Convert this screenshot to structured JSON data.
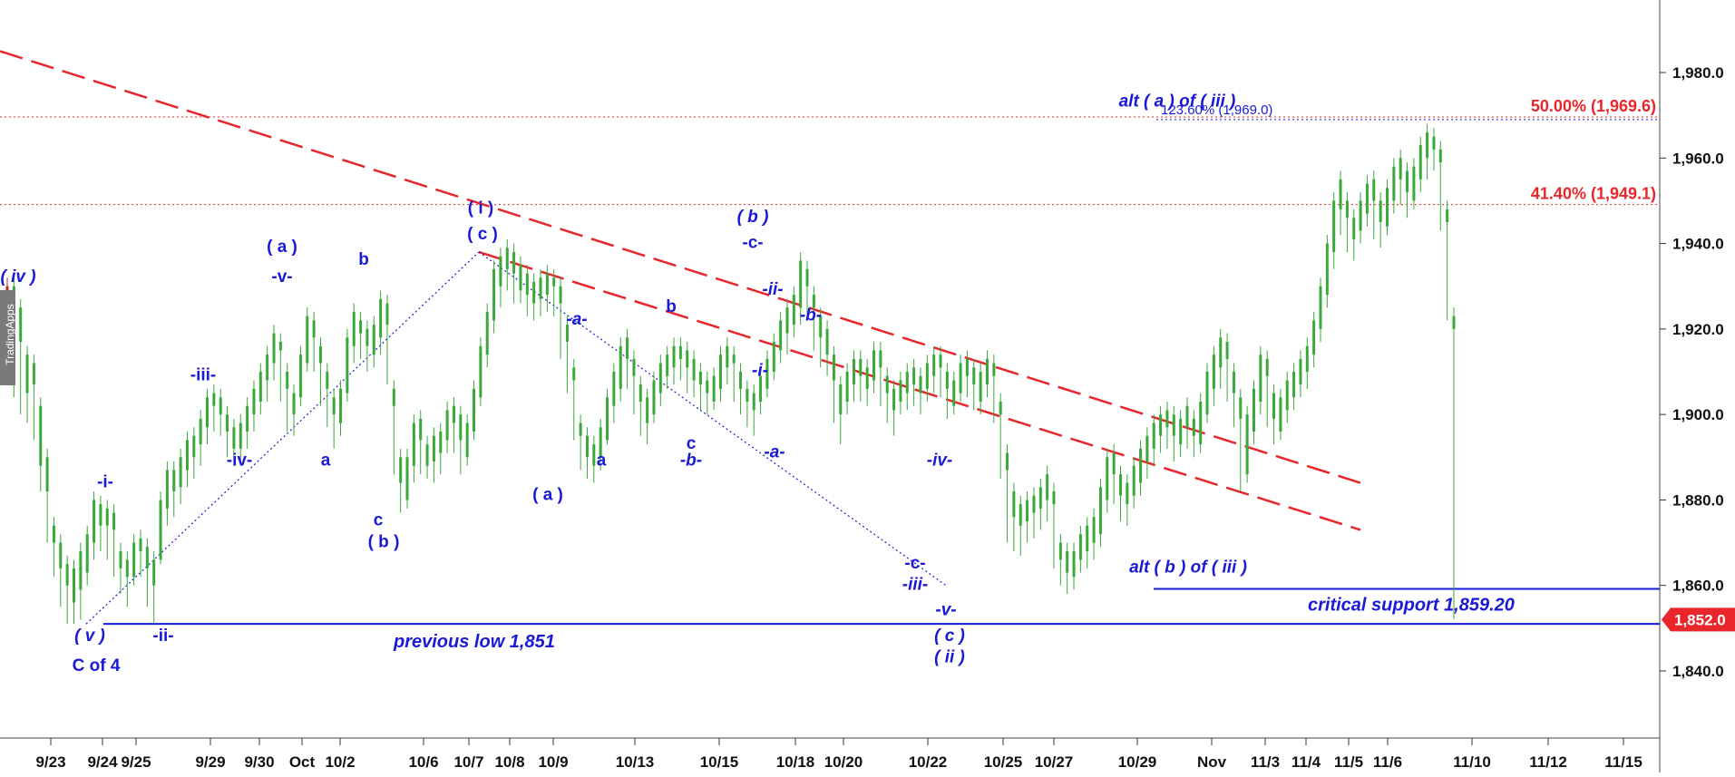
{
  "watermark": "TradingApps",
  "chart_data": {
    "type": "candlestick",
    "y_axis": {
      "ticks": [
        "1,980.0",
        "1,960.0",
        "1,940.0",
        "1,920.0",
        "1,900.0",
        "1,880.0",
        "1,860.0",
        "1,840.0"
      ],
      "ylim": [
        1820,
        1996
      ],
      "side": "right"
    },
    "x_axis": {
      "ticks": [
        "9/23",
        "9/24",
        "9/25",
        "9/29",
        "9/30",
        "Oct",
        "10/2",
        "10/6",
        "10/7",
        "10/8",
        "10/9",
        "10/13",
        "10/15",
        "10/18",
        "10/20",
        "10/22",
        "10/25",
        "10/27",
        "10/29",
        "Nov",
        "11/3",
        "11/4",
        "11/5",
        "11/6",
        "11/10",
        "11/12",
        "11/15"
      ]
    },
    "last_price": {
      "value": 1852.0,
      "label": "1,852.0",
      "color": "#e8262c"
    },
    "horizontal_levels": [
      {
        "value": 1969.6,
        "label": "50.00% (1,969.6)",
        "color": "#e8262c",
        "style": "dotted"
      },
      {
        "value": 1949.1,
        "label": "41.40% (1,949.1)",
        "color": "#e8262c",
        "style": "dotted"
      },
      {
        "value": 1969.0,
        "label": "123.60% (1,969.0)",
        "color": "#1a1ad6",
        "style": "dotted"
      },
      {
        "value": 1859.2,
        "label": "critical support 1,859.20",
        "color": "#1a1ad6",
        "style": "solid"
      },
      {
        "value": 1851,
        "label": "previous low 1,851",
        "color": "#1a1ad6",
        "style": "solid"
      }
    ],
    "trendlines": [
      {
        "color": "#e8262c",
        "style": "dashed",
        "points": [
          [
            0,
            1985
          ],
          [
            1500,
            1884
          ]
        ]
      },
      {
        "color": "#e8262c",
        "style": "dashed",
        "points": [
          [
            528,
            1938
          ],
          [
            1500,
            1873
          ]
        ]
      },
      {
        "color": "#1a1ad6",
        "style": "dotted",
        "points": [
          [
            95,
            1851
          ],
          [
            528,
            1938
          ]
        ]
      },
      {
        "color": "#1a1ad6",
        "style": "dotted",
        "points": [
          [
            528,
            1938
          ],
          [
            1043,
            1860
          ]
        ]
      }
    ],
    "annotations": [
      {
        "text": "( iv )",
        "x": 20,
        "y": 1931,
        "italic": true
      },
      {
        "text": "-i-",
        "x": 116,
        "y": 1883,
        "italic": false
      },
      {
        "text": "( v )",
        "x": 99,
        "y": 1847,
        "italic": true
      },
      {
        "text": "C of 4",
        "x": 106,
        "y": 1840,
        "italic": false
      },
      {
        "text": "-ii-",
        "x": 180,
        "y": 1847,
        "italic": false
      },
      {
        "text": "-iii-",
        "x": 224,
        "y": 1908,
        "italic": false
      },
      {
        "text": "-iv-",
        "x": 264,
        "y": 1888,
        "italic": false
      },
      {
        "text": "( a )",
        "x": 311,
        "y": 1938,
        "italic": false
      },
      {
        "text": "-v-",
        "x": 311,
        "y": 1931,
        "italic": false
      },
      {
        "text": "a",
        "x": 359,
        "y": 1888,
        "italic": false
      },
      {
        "text": "b",
        "x": 401,
        "y": 1935,
        "italic": false
      },
      {
        "text": "c",
        "x": 417,
        "y": 1874,
        "italic": false
      },
      {
        "text": "( b )",
        "x": 423,
        "y": 1869,
        "italic": false
      },
      {
        "text": "( i )",
        "x": 530,
        "y": 1947,
        "italic": false
      },
      {
        "text": "( c )",
        "x": 532,
        "y": 1941,
        "italic": false
      },
      {
        "text": "-a-",
        "x": 636,
        "y": 1921,
        "italic": true
      },
      {
        "text": "( a )",
        "x": 604,
        "y": 1880,
        "italic": false
      },
      {
        "text": "a",
        "x": 663,
        "y": 1888,
        "italic": false
      },
      {
        "text": "b",
        "x": 740,
        "y": 1924,
        "italic": false
      },
      {
        "text": "c",
        "x": 762,
        "y": 1892,
        "italic": false
      },
      {
        "text": "-b-",
        "x": 762,
        "y": 1888,
        "italic": true
      },
      {
        "text": "( b )",
        "x": 830,
        "y": 1945,
        "italic": true
      },
      {
        "text": "-c-",
        "x": 830,
        "y": 1939,
        "italic": false
      },
      {
        "text": "-ii-",
        "x": 852,
        "y": 1928,
        "italic": true
      },
      {
        "text": "-b-",
        "x": 894,
        "y": 1922,
        "italic": true
      },
      {
        "text": "-i-",
        "x": 838,
        "y": 1909,
        "italic": true
      },
      {
        "text": "-a-",
        "x": 854,
        "y": 1890,
        "italic": true
      },
      {
        "text": "-iv-",
        "x": 1036,
        "y": 1888,
        "italic": true
      },
      {
        "text": "-c-",
        "x": 1009,
        "y": 1864,
        "italic": false
      },
      {
        "text": "-iii-",
        "x": 1009,
        "y": 1859,
        "italic": true
      },
      {
        "text": "-v-",
        "x": 1043,
        "y": 1853,
        "italic": true
      },
      {
        "text": "( c )",
        "x": 1047,
        "y": 1847,
        "italic": true
      },
      {
        "text": "( ii )",
        "x": 1047,
        "y": 1842,
        "italic": true
      },
      {
        "text": "alt ( a ) of ( iii )",
        "x": 1298,
        "y": 1972,
        "italic": true
      },
      {
        "text": "alt ( b ) of ( iii )",
        "x": 1310,
        "y": 1863,
        "italic": true
      }
    ],
    "candles": [
      [
        1930,
        1925,
        1908
      ],
      [
        1915,
        1930,
        1904
      ],
      [
        1917,
        1925,
        1900
      ],
      [
        1905,
        1914,
        1898
      ],
      [
        1907,
        1912,
        1894
      ],
      [
        1888,
        1902,
        1882
      ],
      [
        1882,
        1890,
        1870
      ],
      [
        1870,
        1874,
        1862
      ],
      [
        1864,
        1870,
        1855
      ],
      [
        1860,
        1865,
        1851
      ],
      [
        1856,
        1864,
        1851
      ],
      [
        1859,
        1868,
        1852
      ],
      [
        1863,
        1872,
        1860
      ],
      [
        1870,
        1880,
        1866
      ],
      [
        1874,
        1879,
        1868
      ],
      [
        1874,
        1878,
        1866
      ],
      [
        1873,
        1877,
        1862
      ],
      [
        1864,
        1868,
        1858
      ],
      [
        1862,
        1866,
        1855
      ],
      [
        1862,
        1870,
        1860
      ],
      [
        1868,
        1871,
        1862
      ],
      [
        1864,
        1869,
        1855
      ],
      [
        1860,
        1866,
        1851
      ],
      [
        1866,
        1880,
        1865
      ],
      [
        1878,
        1887,
        1874
      ],
      [
        1882,
        1887,
        1876
      ],
      [
        1883,
        1890,
        1879
      ],
      [
        1887,
        1894,
        1883
      ],
      [
        1890,
        1895,
        1885
      ],
      [
        1893,
        1899,
        1888
      ],
      [
        1897,
        1904,
        1893
      ],
      [
        1902,
        1905,
        1896
      ],
      [
        1900,
        1904,
        1895
      ],
      [
        1896,
        1900,
        1890
      ],
      [
        1892,
        1897,
        1888
      ],
      [
        1892,
        1898,
        1888
      ],
      [
        1896,
        1902,
        1892
      ],
      [
        1900,
        1906,
        1896
      ],
      [
        1903,
        1910,
        1900
      ],
      [
        1908,
        1914,
        1903
      ],
      [
        1912,
        1919,
        1908
      ],
      [
        1915,
        1917,
        1903
      ],
      [
        1906,
        1910,
        1896
      ],
      [
        1900,
        1905,
        1895
      ],
      [
        1904,
        1914,
        1902
      ],
      [
        1912,
        1923,
        1910
      ],
      [
        1918,
        1922,
        1910
      ],
      [
        1912,
        1916,
        1902
      ],
      [
        1906,
        1910,
        1897
      ],
      [
        1900,
        1904,
        1892
      ],
      [
        1898,
        1906,
        1895
      ],
      [
        1905,
        1918,
        1903
      ],
      [
        1916,
        1924,
        1912
      ],
      [
        1919,
        1922,
        1913
      ],
      [
        1916,
        1920,
        1910
      ],
      [
        1914,
        1921,
        1911
      ],
      [
        1918,
        1927,
        1914
      ],
      [
        1921,
        1926,
        1907
      ],
      [
        1902,
        1906,
        1886
      ],
      [
        1884,
        1890,
        1877
      ],
      [
        1880,
        1890,
        1878
      ],
      [
        1888,
        1898,
        1884
      ],
      [
        1894,
        1899,
        1886
      ],
      [
        1888,
        1893,
        1885
      ],
      [
        1889,
        1895,
        1884
      ],
      [
        1891,
        1896,
        1886
      ],
      [
        1894,
        1901,
        1891
      ],
      [
        1898,
        1902,
        1891
      ],
      [
        1894,
        1900,
        1886
      ],
      [
        1890,
        1898,
        1888
      ],
      [
        1896,
        1906,
        1894
      ],
      [
        1904,
        1916,
        1902
      ],
      [
        1914,
        1924,
        1911
      ],
      [
        1922,
        1934,
        1919
      ],
      [
        1930,
        1937,
        1925
      ],
      [
        1934,
        1939,
        1929
      ],
      [
        1933,
        1938,
        1926
      ],
      [
        1929,
        1935,
        1926
      ],
      [
        1928,
        1933,
        1923
      ],
      [
        1926,
        1931,
        1922
      ],
      [
        1927,
        1932,
        1923
      ],
      [
        1928,
        1933,
        1924
      ],
      [
        1930,
        1932,
        1923
      ],
      [
        1926,
        1930,
        1913
      ],
      [
        1917,
        1921,
        1905
      ],
      [
        1908,
        1911,
        1894
      ],
      [
        1895,
        1898,
        1887
      ],
      [
        1890,
        1895,
        1885
      ],
      [
        1888,
        1893,
        1884
      ],
      [
        1890,
        1897,
        1887
      ],
      [
        1894,
        1904,
        1893
      ],
      [
        1902,
        1910,
        1898
      ],
      [
        1906,
        1916,
        1903
      ],
      [
        1913,
        1918,
        1906
      ],
      [
        1909,
        1913,
        1900
      ],
      [
        1903,
        1907,
        1895
      ],
      [
        1898,
        1904,
        1893
      ],
      [
        1900,
        1908,
        1898
      ],
      [
        1905,
        1912,
        1902
      ],
      [
        1909,
        1914,
        1906
      ],
      [
        1911,
        1916,
        1907
      ],
      [
        1913,
        1916,
        1908
      ],
      [
        1911,
        1915,
        1905
      ],
      [
        1908,
        1913,
        1904
      ],
      [
        1907,
        1910,
        1901
      ],
      [
        1905,
        1908,
        1900
      ],
      [
        1903,
        1909,
        1901
      ],
      [
        1906,
        1914,
        1903
      ],
      [
        1911,
        1916,
        1907
      ],
      [
        1912,
        1914,
        1903
      ],
      [
        1906,
        1910,
        1900
      ],
      [
        1903,
        1906,
        1897
      ],
      [
        1901,
        1905,
        1895
      ],
      [
        1903,
        1909,
        1900
      ],
      [
        1906,
        1913,
        1904
      ],
      [
        1910,
        1917,
        1908
      ],
      [
        1915,
        1922,
        1912
      ],
      [
        1919,
        1925,
        1914
      ],
      [
        1921,
        1928,
        1918
      ],
      [
        1925,
        1936,
        1921
      ],
      [
        1930,
        1934,
        1922
      ],
      [
        1925,
        1928,
        1915
      ],
      [
        1918,
        1923,
        1911
      ],
      [
        1914,
        1920,
        1909
      ],
      [
        1908,
        1914,
        1898
      ],
      [
        1900,
        1907,
        1893
      ],
      [
        1903,
        1910,
        1900
      ],
      [
        1907,
        1913,
        1903
      ],
      [
        1909,
        1913,
        1903
      ],
      [
        1906,
        1911,
        1902
      ],
      [
        1908,
        1915,
        1905
      ],
      [
        1911,
        1915,
        1902
      ],
      [
        1905,
        1909,
        1898
      ],
      [
        1901,
        1906,
        1895
      ],
      [
        1903,
        1908,
        1900
      ],
      [
        1905,
        1910,
        1901
      ],
      [
        1907,
        1911,
        1902
      ],
      [
        1905,
        1909,
        1900
      ],
      [
        1906,
        1912,
        1903
      ],
      [
        1909,
        1914,
        1905
      ],
      [
        1911,
        1914,
        1904
      ],
      [
        1906,
        1910,
        1899
      ],
      [
        1902,
        1908,
        1900
      ],
      [
        1905,
        1912,
        1903
      ],
      [
        1909,
        1913,
        1904
      ],
      [
        1907,
        1911,
        1901
      ],
      [
        1903,
        1910,
        1900
      ],
      [
        1907,
        1913,
        1904
      ],
      [
        1909,
        1912,
        1898
      ],
      [
        1900,
        1903,
        1885
      ],
      [
        1887,
        1891,
        1870
      ],
      [
        1876,
        1882,
        1868
      ],
      [
        1874,
        1879,
        1867
      ],
      [
        1875,
        1880,
        1870
      ],
      [
        1877,
        1881,
        1871
      ],
      [
        1878,
        1883,
        1873
      ],
      [
        1880,
        1886,
        1875
      ],
      [
        1879,
        1882,
        1864
      ],
      [
        1866,
        1870,
        1860
      ],
      [
        1863,
        1868,
        1858
      ],
      [
        1862,
        1868,
        1859
      ],
      [
        1866,
        1872,
        1863
      ],
      [
        1868,
        1874,
        1864
      ],
      [
        1870,
        1876,
        1866
      ],
      [
        1872,
        1883,
        1869
      ],
      [
        1880,
        1890,
        1877
      ],
      [
        1886,
        1891,
        1879
      ],
      [
        1881,
        1886,
        1875
      ],
      [
        1879,
        1884,
        1874
      ],
      [
        1881,
        1888,
        1878
      ],
      [
        1884,
        1892,
        1881
      ],
      [
        1889,
        1895,
        1885
      ],
      [
        1892,
        1898,
        1888
      ],
      [
        1895,
        1900,
        1891
      ],
      [
        1897,
        1901,
        1892
      ],
      [
        1895,
        1900,
        1889
      ],
      [
        1893,
        1899,
        1890
      ],
      [
        1897,
        1902,
        1892
      ],
      [
        1895,
        1899,
        1890
      ],
      [
        1893,
        1903,
        1891
      ],
      [
        1900,
        1910,
        1898
      ],
      [
        1906,
        1914,
        1902
      ],
      [
        1911,
        1918,
        1906
      ],
      [
        1913,
        1917,
        1903
      ],
      [
        1905,
        1910,
        1897
      ],
      [
        1899,
        1904,
        1882
      ],
      [
        1886,
        1900,
        1884
      ],
      [
        1896,
        1906,
        1893
      ],
      [
        1903,
        1914,
        1900
      ],
      [
        1909,
        1913,
        1897
      ],
      [
        1899,
        1905,
        1893
      ],
      [
        1896,
        1904,
        1894
      ],
      [
        1901,
        1908,
        1898
      ],
      [
        1904,
        1910,
        1901
      ],
      [
        1907,
        1913,
        1904
      ],
      [
        1910,
        1916,
        1906
      ],
      [
        1914,
        1922,
        1911
      ],
      [
        1920,
        1930,
        1917
      ],
      [
        1928,
        1940,
        1925
      ],
      [
        1938,
        1950,
        1934
      ],
      [
        1948,
        1955,
        1942
      ],
      [
        1946,
        1950,
        1938
      ],
      [
        1941,
        1946,
        1936
      ],
      [
        1943,
        1950,
        1940
      ],
      [
        1947,
        1954,
        1944
      ],
      [
        1950,
        1955,
        1941
      ],
      [
        1945,
        1950,
        1939
      ],
      [
        1944,
        1953,
        1942
      ],
      [
        1950,
        1958,
        1947
      ],
      [
        1955,
        1960,
        1949
      ],
      [
        1952,
        1957,
        1946
      ],
      [
        1950,
        1958,
        1948
      ],
      [
        1955,
        1963,
        1952
      ],
      [
        1960,
        1966,
        1955
      ],
      [
        1962,
        1965,
        1957
      ],
      [
        1959,
        1962,
        1943
      ],
      [
        1945,
        1948,
        1922
      ],
      [
        1920,
        1923,
        1852
      ]
    ]
  }
}
